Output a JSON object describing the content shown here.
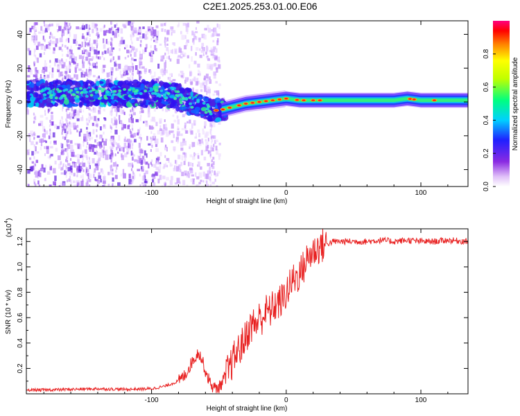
{
  "title": "C2E1.2025.253.01.00.E06",
  "colors": {
    "snr_line": "#e82020",
    "axis": "#000000",
    "background": "#ffffff"
  },
  "chart_data": [
    {
      "type": "heatmap",
      "title": "C2E1.2025.253.01.00.E06",
      "xlabel": "Height of straight line (km)",
      "ylabel": "Frequency (Hz)",
      "xlim": [
        -193,
        135
      ],
      "ylim": [
        -50,
        48
      ],
      "xticks": [
        -100,
        0,
        100
      ],
      "xtick_labels": [
        "-100",
        "0",
        "100"
      ],
      "yticks": [
        40,
        20,
        0,
        -20,
        -40
      ],
      "ytick_labels": [
        "40",
        "20",
        "0",
        "-20",
        "-40"
      ],
      "ridge": {
        "x": [
          -193,
          -160,
          -130,
          -100,
          -80,
          -65,
          -55,
          -50,
          -40,
          -30,
          -20,
          -10,
          0,
          10,
          20,
          40,
          60,
          80,
          90,
          100,
          110,
          135
        ],
        "frequency": [
          5,
          5,
          5,
          5,
          3,
          -2,
          -5,
          -5,
          -3,
          -1,
          0,
          1,
          2,
          1,
          1,
          1,
          1,
          1,
          2,
          1,
          1,
          1
        ]
      },
      "colorbar": {
        "label": "Normalized spectral amplitude",
        "range": [
          0.0,
          1.0
        ],
        "ticks": [
          0.0,
          0.2,
          0.4,
          0.6,
          0.8
        ],
        "tick_labels": [
          "0.0",
          "0.2",
          "0.4",
          "0.6",
          "0.8"
        ]
      }
    },
    {
      "type": "line",
      "xlabel": "Height of straight line (km)",
      "ylabel": "SNR (10 * v/v)",
      "y_scale_label": "(x10",
      "y_scale_exponent": "4",
      "xlim": [
        -193,
        135
      ],
      "ylim": [
        0.0,
        1.3
      ],
      "xticks": [
        -100,
        0,
        100
      ],
      "xtick_labels": [
        "-100",
        "0",
        "100"
      ],
      "yticks": [
        0.2,
        0.4,
        0.6,
        0.8,
        1.0,
        1.2
      ],
      "ytick_labels": [
        "0.2",
        "0.4",
        "0.6",
        "0.8",
        "1.0",
        "1.2"
      ],
      "series": [
        {
          "name": "SNR",
          "x": [
            -193,
            -180,
            -160,
            -140,
            -120,
            -100,
            -90,
            -80,
            -75,
            -70,
            -67,
            -65,
            -62,
            -60,
            -57,
            -55,
            -52,
            -50,
            -48,
            -45,
            -42,
            -40,
            -38,
            -35,
            -32,
            -30,
            -28,
            -25,
            -22,
            -20,
            -18,
            -15,
            -12,
            -10,
            -8,
            -5,
            -2,
            0,
            3,
            5,
            8,
            10,
            13,
            15,
            18,
            20,
            25,
            30,
            35,
            40,
            50,
            60,
            70,
            80,
            90,
            100,
            110,
            120,
            135
          ],
          "y": [
            0.03,
            0.03,
            0.035,
            0.04,
            0.035,
            0.04,
            0.06,
            0.1,
            0.15,
            0.25,
            0.3,
            0.33,
            0.25,
            0.18,
            0.1,
            0.06,
            0.04,
            0.05,
            0.08,
            0.15,
            0.2,
            0.25,
            0.3,
            0.35,
            0.4,
            0.45,
            0.5,
            0.55,
            0.55,
            0.6,
            0.6,
            0.65,
            0.65,
            0.68,
            0.7,
            0.72,
            0.75,
            0.8,
            0.85,
            0.9,
            0.92,
            0.95,
            1.0,
            1.05,
            1.1,
            1.12,
            1.16,
            1.18,
            1.2,
            1.2,
            1.2,
            1.2,
            1.21,
            1.2,
            1.21,
            1.2,
            1.2,
            1.21,
            1.2
          ]
        }
      ]
    }
  ]
}
